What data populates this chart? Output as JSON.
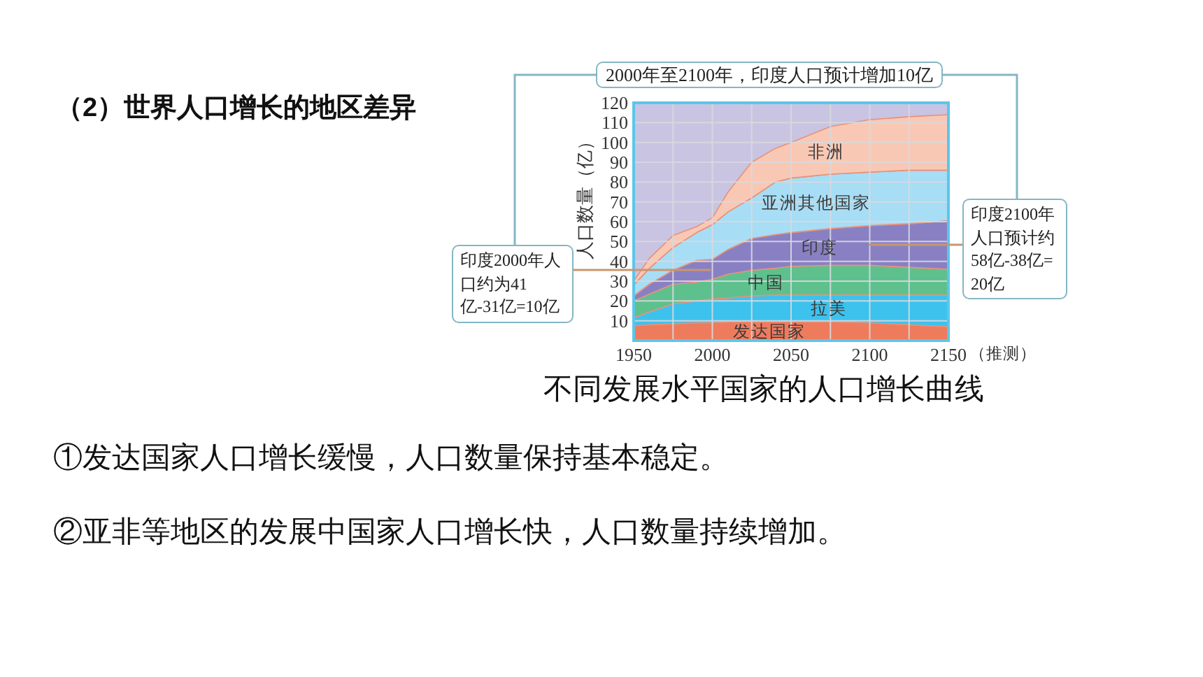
{
  "chart_data": {
    "type": "area",
    "stacked": true,
    "title": "（2）世界人口增长的地区差异",
    "subtitle": "不同发展水平国家的人口增长曲线",
    "xlabel": "（推测）",
    "ylabel": "人口数量（亿）",
    "x": [
      1950,
      1960,
      1975,
      1990,
      2000,
      2010,
      2025,
      2040,
      2050,
      2075,
      2100,
      2125,
      2150
    ],
    "xlim": [
      1950,
      2150
    ],
    "xticks": [
      1950,
      {
        "value": 1975,
        "label": null
      },
      2000,
      {
        "value": 2025,
        "label": null
      },
      2050,
      {
        "value": 2075,
        "label": null
      },
      2100,
      {
        "value": 2125,
        "label": null
      },
      2150
    ],
    "ylim": [
      0,
      120
    ],
    "yticks": [
      10,
      20,
      30,
      40,
      50,
      60,
      70,
      80,
      90,
      100,
      110,
      120
    ],
    "grid": true,
    "series": [
      {
        "name": "发达国家",
        "color": "#ef7b5d",
        "values": [
          7.5,
          8,
          8.5,
          9,
          9,
          9.5,
          9.5,
          9.5,
          9.5,
          9.5,
          9,
          8,
          7
        ]
      },
      {
        "name": "拉美",
        "color": "#3dc2ee",
        "values": [
          4,
          6.5,
          10,
          11,
          12,
          12,
          13,
          13.5,
          13.5,
          13.5,
          14,
          15,
          16
        ]
      },
      {
        "name": "中国",
        "color": "#5ec18d",
        "values": [
          8.5,
          9,
          10,
          9.5,
          10,
          12,
          13,
          13.5,
          14.5,
          15,
          15,
          14,
          13
        ]
      },
      {
        "name": "印度",
        "color": "#8980c4",
        "values": [
          2.5,
          5,
          7,
          11,
          10,
          12.5,
          16,
          17,
          17,
          18.5,
          20,
          22,
          24.5
        ]
      },
      {
        "name": "亚洲其他国家",
        "color": "#a7ddf5",
        "values": [
          5.5,
          8,
          11.5,
          14,
          17.5,
          19,
          20.5,
          26.5,
          27.5,
          27.5,
          27,
          27,
          25.5
        ]
      },
      {
        "name": "非洲",
        "color": "#f9c8b4",
        "values": [
          2,
          5,
          6,
          3,
          3.5,
          10,
          18,
          17,
          18,
          24,
          26.5,
          27,
          28
        ]
      }
    ],
    "annotations": [
      "2000年至2100年，印度人口预计增加10亿",
      "印度2000年人口约为41亿-31亿=10亿",
      "印度2100年人口预计约58亿-38亿=20亿",
      "①发达国家人口增长缓慢，人口数量保持基本稳定。",
      "②亚非等地区的发展中国家人口增长快，人口数量持续增加。"
    ]
  }
}
